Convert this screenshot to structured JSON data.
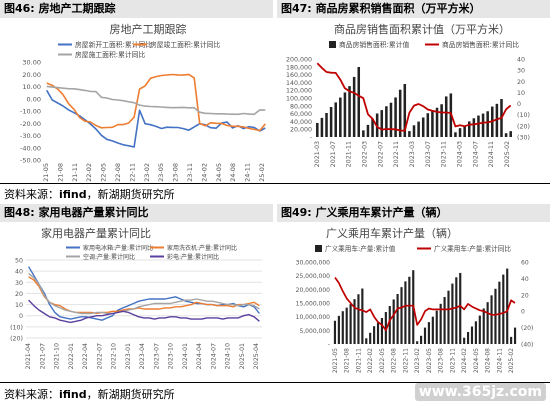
{
  "figures": [
    {
      "label": "图46:",
      "title": "房地产工期跟踪"
    },
    {
      "label": "图47:",
      "title": "商品房累积销售面积（万平方米）"
    },
    {
      "label": "图48:",
      "title": "家用电器产量累计同比"
    },
    {
      "label": "图49:",
      "title": "广义乘用车累计产量（辆）"
    }
  ],
  "source": {
    "prefix": "资料来源：",
    "name": "ifind",
    "suffix": "，新湖期货研究所"
  },
  "watermark": "www.365jz.com",
  "chart_data": [
    {
      "type": "line",
      "title": "房地产工期跟踪",
      "x_ticks": [
        "2021-05",
        "2021-08",
        "2021-11",
        "2022-02",
        "2022-05",
        "2022-08",
        "2022-11",
        "2023-02",
        "2023-05",
        "2023-08",
        "2023-11",
        "2024-02",
        "2024-05",
        "2024-08",
        "2024-11",
        "2025-02"
      ],
      "ylim": [
        -50,
        30
      ],
      "y_ticks": [
        "30.00",
        "20.00",
        "10.00",
        "0.00",
        "-10.00",
        "-20.00",
        "-30.00",
        "-40.00",
        "-50.00"
      ],
      "legend_position": "top-left",
      "series": [
        {
          "name": "房屋新开工面积:累计同比",
          "color": "#4472c4",
          "values": [
            6.9,
            -0.9,
            -3.5,
            -6.0,
            -9.1,
            -11.4,
            -13.9,
            -17.2,
            -20.6,
            -24.7,
            -29.8,
            -33.1,
            -34.4,
            -36.1,
            -37.6,
            -38.4,
            -39.4,
            -9.4,
            -20.4,
            -21.2,
            -22.6,
            -24.3,
            -23.2,
            -23.4,
            -23.5,
            -24.4,
            -25.7,
            -23.0,
            -20.4,
            -21.3,
            -23.6,
            -24.0,
            -19.8,
            -19.1,
            -23.8,
            -22.0,
            -24.4,
            -22.8,
            -23.5,
            -26.3,
            -23.9
          ]
        },
        {
          "name": "房屋竣工面积:累计同比",
          "color": "#ed7d31",
          "values": [
            12.8,
            11.0,
            7.9,
            3.2,
            -4.0,
            -8.6,
            -15.2,
            -18.3,
            -19.0,
            -21.8,
            -23.7,
            -23.5,
            -23.3,
            -21.2,
            -21.1,
            -19.8,
            -15.0,
            8.0,
            10.5,
            16.7,
            18.1,
            19.0,
            19.4,
            19.8,
            19.5,
            19.3,
            19.9,
            17.0,
            -20.2,
            -22.1,
            -19.6,
            -20.0,
            -20.1,
            -21.8,
            -22.4,
            -22.5,
            -23.0,
            -24.2,
            -25.0,
            -26.0,
            -20.5
          ]
        },
        {
          "name": "房屋施工面积:累计同比",
          "color": "#a5a5a5",
          "values": [
            10.1,
            9.5,
            9.1,
            8.6,
            8.2,
            8.1,
            7.5,
            6.8,
            6.0,
            5.8,
            1.2,
            0.6,
            -0.6,
            -1.0,
            -1.6,
            -2.5,
            -3.2,
            -5.2,
            -6.0,
            -6.3,
            -6.5,
            -6.7,
            -7.1,
            -7.3,
            -7.2,
            -7.1,
            -7.4,
            -7.3,
            -11.0,
            -11.9,
            -12.0,
            -12.3,
            -12.3,
            -12.5,
            -12.6,
            -12.7,
            -12.0,
            -12.5,
            -12.7,
            -9.1,
            -9.3
          ]
        }
      ]
    },
    {
      "type": "bar",
      "title": "商品房销售面积累计值（万平方米）",
      "x_ticks": [
        "2021-03",
        "2021-07",
        "2021-11",
        "2022-03",
        "2022-07",
        "2022-11",
        "2023-03",
        "2023-07",
        "2023-11",
        "2024-03",
        "2024-07",
        "2024-11",
        "2025-02"
      ],
      "ylim": [
        0,
        200000
      ],
      "y_ticks": [
        "200,000",
        "180,000",
        "160,000",
        "140,000",
        "120,000",
        "100,000",
        "80,000",
        "60,000",
        "40,000",
        "20,000",
        "-"
      ],
      "y2lim": [
        -30,
        40
      ],
      "y2_ticks": [
        "40",
        "30",
        "20",
        "10",
        "0",
        "(10)",
        "(20)",
        "(30)"
      ],
      "legend_position": "top-center",
      "series": [
        {
          "name": "商品房销售面积:累计值",
          "color": "#222222",
          "values": [
            36007,
            48952,
            61557,
            76840,
            88635,
            101163,
            114163,
            130466,
            154040,
            179433,
            17000,
            31046,
            46757,
            60250,
            68923,
            78821,
            87890,
            101422,
            121250,
            135837,
            15133,
            29985,
            39534,
            49985,
            61000,
            67523,
            75000,
            84000,
            104000,
            111735,
            12000,
            22668,
            27810,
            40000,
            48000,
            55000,
            60000,
            66035,
            78000,
            85000,
            97385,
            9700,
            15000
          ]
        },
        {
          "name": "商品房销售面积:累计同比",
          "color": "#c00000",
          "values": [
            36.1,
            32.0,
            28.3,
            27.7,
            27.5,
            21.5,
            13.7,
            11.0,
            9.7,
            7.1,
            4.8,
            -9.6,
            -13.8,
            -20.9,
            -23.4,
            -22.8,
            -23.0,
            -23.1,
            -24.3,
            -24.3,
            -8.2,
            -1.8,
            -0.4,
            -2.4,
            -5.3,
            -6.5,
            -7.5,
            -8.0,
            -8.0,
            -8.5,
            -20.5,
            -19.4,
            -20.3,
            -19.0,
            -18.6,
            -18.0,
            -17.1,
            -16.9,
            -15.8,
            -14.1,
            -12.9,
            -5.1,
            -1.6
          ]
        }
      ]
    },
    {
      "type": "line",
      "title": "家用电器产量累计同比",
      "x_ticks": [
        "2021-04",
        "2021-07",
        "2021-10",
        "2022-01",
        "2022-04",
        "2022-07",
        "2022-10",
        "2023-01",
        "2023-04",
        "2023-07",
        "2023-10",
        "2024-01",
        "2024-04",
        "2024-07",
        "2024-10",
        "2025-01",
        "2025-04"
      ],
      "ylim": [
        -20,
        50
      ],
      "y_ticks": [
        "50",
        "40",
        "30",
        "20",
        "10",
        "0",
        "(10)",
        "(20)"
      ],
      "legend_position": "top",
      "series": [
        {
          "name": "家用电冰箱:产量:累计同比",
          "color": "#4472c4",
          "values": [
            44,
            36,
            28,
            20,
            10,
            3,
            -1,
            -2,
            -3,
            -2,
            -1,
            -1,
            -2,
            -3,
            -4,
            -2,
            0,
            5,
            7,
            9,
            11,
            13,
            14,
            15,
            15,
            15,
            15,
            16,
            17,
            15,
            13,
            12,
            11,
            11,
            10,
            10,
            9,
            10,
            10,
            11,
            9,
            8,
            10,
            8,
            2
          ]
        },
        {
          "name": "家用洗衣机:产量:累计同比",
          "color": "#ed7d31",
          "values": [
            35,
            32,
            26,
            17,
            12,
            10,
            9,
            6,
            4,
            3,
            3,
            3,
            3,
            2,
            3,
            3,
            4,
            4,
            5,
            6,
            6,
            7,
            6,
            6,
            6,
            6,
            7,
            7,
            8,
            8,
            9,
            10,
            12,
            11,
            10,
            10,
            9,
            9,
            9,
            8,
            10,
            10,
            11,
            12,
            9
          ]
        },
        {
          "name": "空调:产量:累计同比",
          "color": "#a5a5a5",
          "values": [
            38,
            34,
            28,
            18,
            12,
            9,
            7,
            5,
            4,
            3,
            2,
            2,
            2,
            3,
            3,
            2,
            2,
            3,
            4,
            5,
            6,
            8,
            9,
            10,
            11,
            11,
            11,
            11,
            12,
            13,
            14,
            14,
            15,
            14,
            13,
            13,
            12,
            11,
            10,
            10,
            9,
            10,
            10,
            9,
            6
          ]
        },
        {
          "name": "彩电:产量:累计同比",
          "color": "#5b3f9e",
          "values": [
            14,
            9,
            5,
            2,
            -1,
            -2,
            -4,
            -5,
            -6,
            -5,
            -4,
            -2,
            -1,
            0,
            0,
            1,
            2,
            3,
            4,
            3,
            1,
            -1,
            -2,
            -2,
            -3,
            -2,
            -2,
            -1,
            -1,
            -2,
            -2,
            -3,
            -3,
            -3,
            -2,
            -2,
            -2,
            -3,
            -2,
            -2,
            -2,
            0,
            1,
            -1,
            -5
          ]
        }
      ]
    },
    {
      "type": "bar",
      "title": "广义乘用车累计产量（辆）",
      "x_ticks": [
        "2021-05",
        "2021-08",
        "2021-11",
        "2022-02",
        "2022-05",
        "2022-08",
        "2022-11",
        "2023-02",
        "2023-05",
        "2023-08",
        "2023-11",
        "2024-02",
        "2024-05",
        "2024-08",
        "2024-11",
        "2025-02"
      ],
      "ylim": [
        0,
        30000000
      ],
      "y_ticks": [
        "30,000,000",
        "25,000,000",
        "20,000,000",
        "15,000,000",
        "10,000,000",
        "5,000,000",
        "-"
      ],
      "y2lim": [
        -30,
        60
      ],
      "y2_ticks": [
        "60",
        "40",
        "20",
        "0",
        "(20)",
        "(40)"
      ],
      "legend_position": "top-center",
      "series": [
        {
          "name": "广义乘用车:产量:累计值",
          "color": "#222222",
          "values": [
            8500000,
            10300000,
            12000000,
            13300000,
            14600000,
            16400000,
            18200000,
            20300000,
            2100000,
            4100000,
            6500000,
            7800000,
            9500000,
            11700000,
            13900000,
            16300000,
            18300000,
            20800000,
            22900000,
            24600000,
            27000000,
            1000000,
            3000000,
            6000000,
            8000000,
            10000000,
            12200000,
            14700000,
            17200000,
            19500000,
            22100000,
            24400000,
            26000000,
            2300000,
            4400000,
            6400000,
            8300000,
            10400000,
            13000000,
            15300000,
            17800000,
            20200000,
            22800000,
            25400000,
            27600000,
            2600000,
            6000000
          ]
        },
        {
          "name": "广义乘用车:产量:累计同比",
          "color": "#c00000",
          "values": [
            43,
            37,
            28,
            20,
            15,
            10,
            8,
            7,
            5,
            8,
            0,
            -6,
            -9,
            -15,
            -4,
            2,
            9,
            10,
            12,
            12,
            12,
            -9,
            -3,
            6,
            9,
            8,
            8,
            8,
            8,
            8,
            9,
            10,
            12,
            8,
            14,
            11,
            9,
            7,
            6,
            4,
            2,
            2,
            3,
            4,
            6,
            18,
            15
          ]
        }
      ]
    }
  ]
}
